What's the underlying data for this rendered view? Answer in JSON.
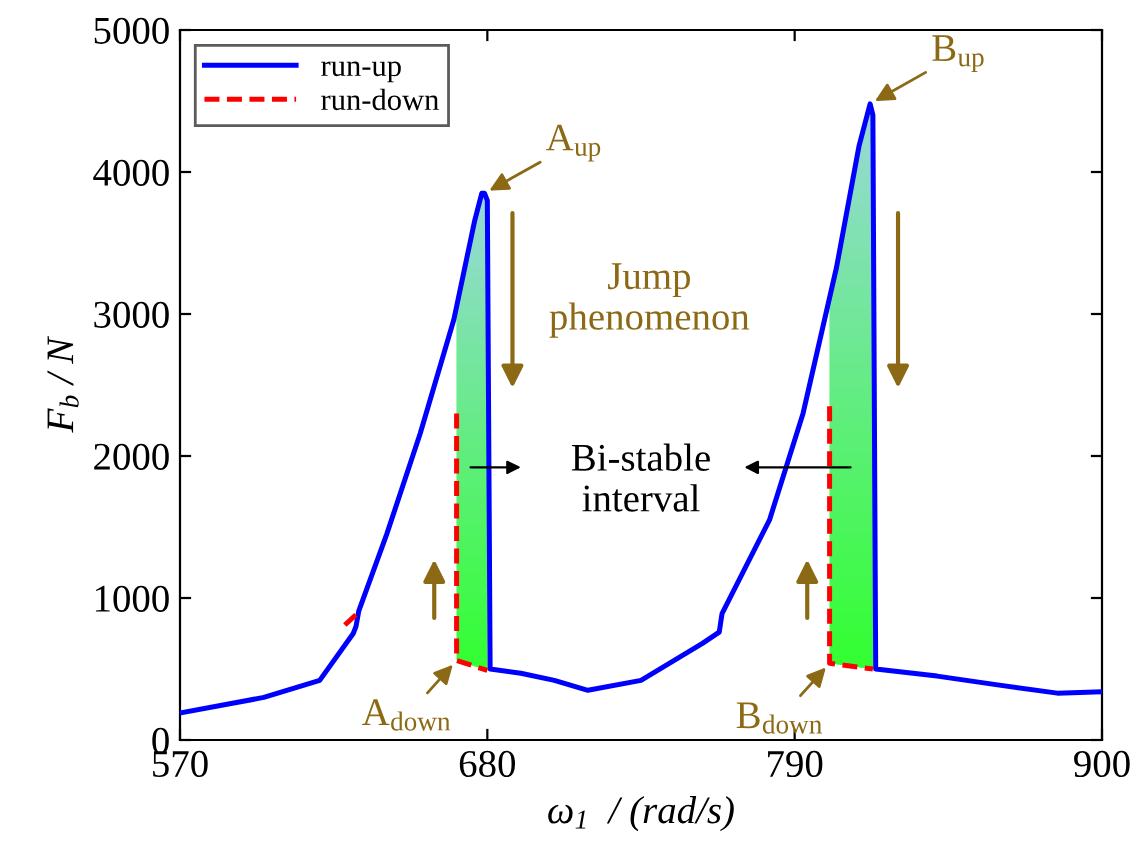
{
  "chart_data": {
    "type": "line",
    "xlabel": "ω$_{1}$  / (rad/s)",
    "ylabel": "F$_{b}$ / N",
    "xlim": [
      570,
      900
    ],
    "xticks": [
      570,
      680,
      790,
      900
    ],
    "ylim": [
      0,
      5000
    ],
    "yticks": [
      0,
      1000,
      2000,
      3000,
      4000,
      5000
    ],
    "grid": false,
    "legend": "top left",
    "series": [
      {
        "name": "run-up",
        "color": "#0000ff",
        "line_style": "solid",
        "x": [
          570,
          600,
          620,
          632,
          633,
          634,
          644,
          656,
          668,
          675.5,
          678,
          679,
          680,
          681,
          692,
          704,
          716,
          735,
          757,
          763,
          764,
          781,
          793,
          805,
          813,
          817,
          818,
          819,
          841,
          862,
          884,
          900
        ],
        "values": [
          190,
          300,
          420,
          750,
          800,
          910,
          1450,
          2160,
          2960,
          3660,
          3850,
          3850,
          3800,
          500,
          470,
          420,
          350,
          420,
          680,
          760,
          890,
          1550,
          2300,
          3330,
          4180,
          4480,
          4400,
          500,
          450,
          390,
          330,
          340
        ]
      },
      {
        "name": "run-down",
        "color": "#ff0000",
        "line_style": "dashed",
        "x": [
          629,
          634.5,
          650,
          669,
          669,
          680,
          790,
          802.5,
          802.5,
          818
        ],
        "values": [
          810,
          910,
          null,
          2300,
          560,
          490,
          null,
          2350,
          540,
          500
        ]
      }
    ],
    "bands": [
      {
        "axis": "x",
        "from": 669,
        "to": 680,
        "color": "#33ff33"
      },
      {
        "axis": "x",
        "from": 802.5,
        "to": 818,
        "color": "#33ff33"
      }
    ],
    "annotations": [
      {
        "text": "A$_{up}$",
        "x": 679,
        "y": 3850
      },
      {
        "text": "A$_{down}$",
        "x": 669,
        "y": 560
      },
      {
        "text": "B$_{up}$",
        "x": 817,
        "y": 4480
      },
      {
        "text": "B$_{down}$",
        "x": 802.5,
        "y": 540
      },
      "Jump\nphenomenon",
      "Bi-stable\ninterval"
    ]
  }
}
